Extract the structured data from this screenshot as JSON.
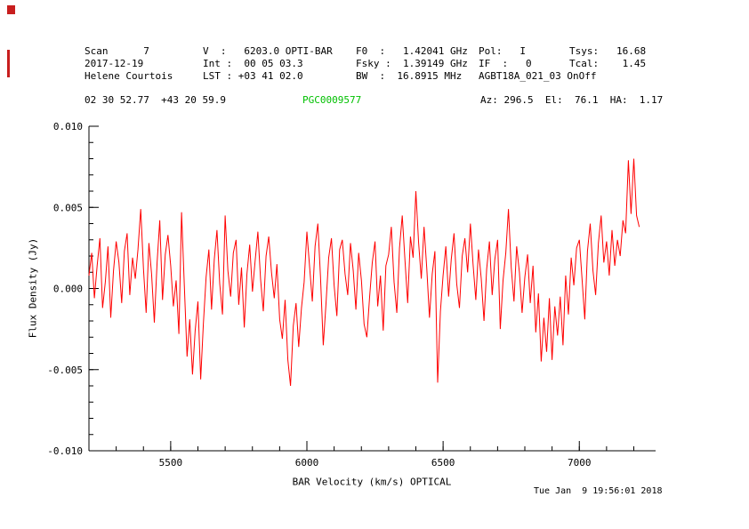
{
  "colors": {
    "spectrum": "#ff0000",
    "source_name": "#00c000",
    "text": "#000000",
    "background": "#ffffff"
  },
  "header": {
    "rows": [
      {
        "cells": [
          "Scan      7",
          "V  :   6203.0 OPTI-BAR",
          "F0  :   1.42041 GHz",
          "Pol:   I",
          "Tsys:   16.68"
        ]
      },
      {
        "cells": [
          "2017-12-19",
          "Int :  00 05 03.3",
          "Fsky :  1.39149 GHz",
          "IF  :   0",
          "Tcal:    1.45"
        ]
      },
      {
        "cells": [
          "Helene Courtois",
          "LST : +03 41 02.0",
          "BW  :  16.8915 MHz",
          "AGBT18A_021_03 OnOff",
          ""
        ]
      }
    ]
  },
  "source": {
    "coordinates": "02 30 52.77  +43 20 59.9",
    "name": "PGC0009577",
    "pointing": "Az: 296.5  El:  76.1  HA:  1.17"
  },
  "footer": {
    "timestamp": "Tue Jan  9 19:56:01 2018"
  },
  "chart_data": {
    "type": "line",
    "title": "PGC0009577",
    "xlabel": "BAR Velocity (km/s) OPTICAL",
    "ylabel": "Flux Density (Jy)",
    "xlim": [
      5200,
      7280
    ],
    "ylim": [
      -0.01,
      0.01
    ],
    "grid": false,
    "legend": "none",
    "line_color": "#ff0000",
    "x_ticks": [
      {
        "v": 5500,
        "label": "5500"
      },
      {
        "v": 6000,
        "label": "6000"
      },
      {
        "v": 6500,
        "label": "6500"
      },
      {
        "v": 7000,
        "label": "7000"
      }
    ],
    "y_ticks": [
      {
        "v": 0.01,
        "label": "0.010"
      },
      {
        "v": 0.005,
        "label": "0.005"
      },
      {
        "v": 0.0,
        "label": "0.000"
      },
      {
        "v": -0.005,
        "label": "-0.005"
      },
      {
        "v": -0.01,
        "label": "-0.010"
      }
    ],
    "x_minor_step": 100,
    "y_minor_step": 0.001,
    "series": [
      {
        "name": "spectrum",
        "x_start": 5200,
        "x_step": 10,
        "values_jy": [
          0.0008,
          0.0022,
          -0.0006,
          0.0014,
          0.0031,
          -0.0012,
          0.0004,
          0.0026,
          -0.0018,
          0.0011,
          0.0029,
          0.0016,
          -0.0009,
          0.0023,
          0.0034,
          -0.0004,
          0.0019,
          0.0006,
          0.0024,
          0.0049,
          0.0012,
          -0.0015,
          0.0028,
          0.0009,
          -0.0021,
          0.0016,
          0.0042,
          -0.0007,
          0.0021,
          0.0033,
          0.0014,
          -0.0011,
          0.0005,
          -0.0028,
          0.0047,
          0.0002,
          -0.0042,
          -0.0019,
          -0.0053,
          -0.0026,
          -0.0008,
          -0.0056,
          -0.0022,
          0.0007,
          0.0024,
          -0.0013,
          0.0018,
          0.0036,
          0.0003,
          -0.0016,
          0.0045,
          0.0011,
          -0.0005,
          0.0022,
          0.003,
          -0.001,
          0.0013,
          -0.0024,
          0.0009,
          0.0027,
          -0.0002,
          0.0017,
          0.0035,
          0.0006,
          -0.0014,
          0.002,
          0.0032,
          0.001,
          -0.0006,
          0.0015,
          -0.0019,
          -0.0031,
          -0.0007,
          -0.0044,
          -0.006,
          -0.0023,
          -0.0009,
          -0.0036,
          -0.0012,
          0.0004,
          0.0035,
          0.0013,
          -0.0008,
          0.0026,
          0.004,
          0.0007,
          -0.0035,
          -0.001,
          0.0019,
          0.0031,
          0.0002,
          -0.0017,
          0.0024,
          0.003,
          0.0009,
          -0.0004,
          0.0028,
          0.0011,
          -0.0013,
          0.0022,
          0.0005,
          -0.0022,
          -0.003,
          -0.0006,
          0.0016,
          0.0029,
          -0.0011,
          0.0008,
          -0.0026,
          0.0014,
          0.0021,
          0.0038,
          0.0004,
          -0.0015,
          0.0025,
          0.0045,
          0.0017,
          -0.0009,
          0.0032,
          0.0019,
          0.006,
          0.0028,
          0.0006,
          0.0038,
          0.0012,
          -0.0018,
          0.0009,
          0.0023,
          -0.0058,
          -0.0014,
          0.0008,
          0.0026,
          -0.0005,
          0.0018,
          0.0034,
          0.0003,
          -0.0012,
          0.002,
          0.0031,
          0.001,
          0.004,
          0.0015,
          -0.0007,
          0.0024,
          0.0006,
          -0.002,
          0.0012,
          0.0029,
          -0.0004,
          0.0018,
          0.003,
          -0.0025,
          0.0005,
          0.0022,
          0.0049,
          0.0013,
          -0.0008,
          0.0026,
          0.001,
          -0.0015,
          0.0007,
          0.0021,
          -0.0009,
          0.0014,
          -0.0027,
          -0.0003,
          -0.0045,
          -0.0018,
          -0.0039,
          -0.0006,
          -0.0044,
          -0.0011,
          -0.0029,
          -0.0005,
          -0.0035,
          0.0008,
          -0.0016,
          0.0019,
          0.0002,
          0.0025,
          0.003,
          0.0006,
          -0.0019,
          0.0023,
          0.004,
          0.0011,
          -0.0004,
          0.0028,
          0.0045,
          0.0016,
          0.0029,
          0.0008,
          0.0036,
          0.0014,
          0.003,
          0.002,
          0.0042,
          0.0034,
          0.0079,
          0.0046,
          0.008,
          0.0045,
          0.0038
        ]
      }
    ]
  }
}
